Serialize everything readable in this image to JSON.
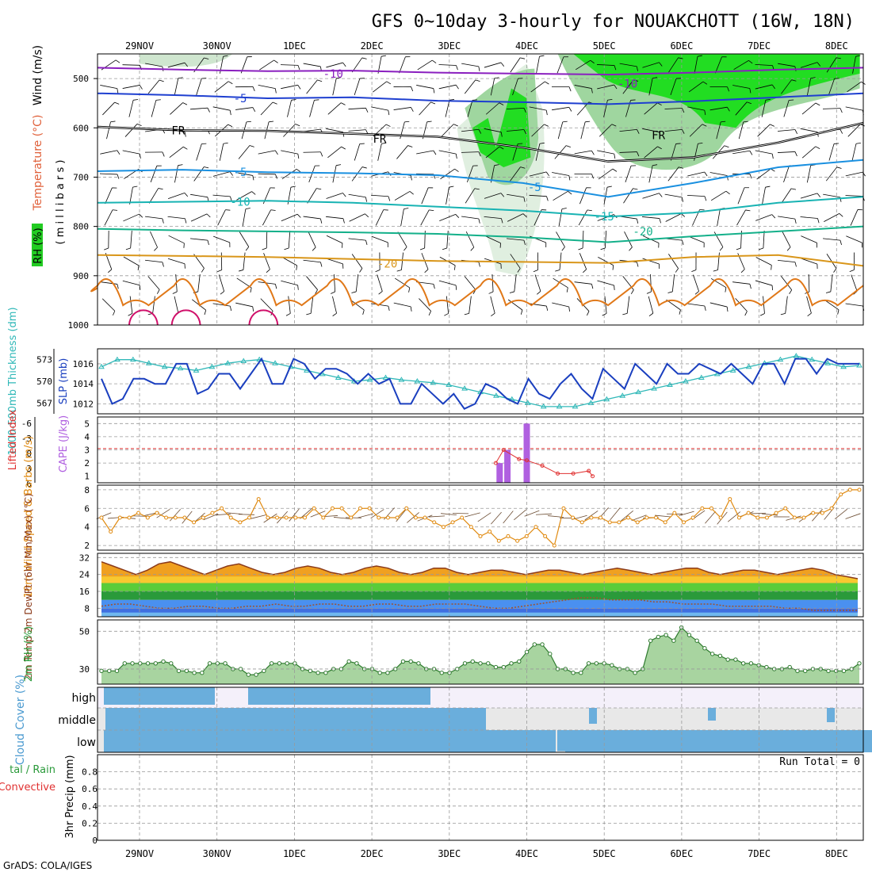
{
  "title": "GFS 0~10day 3-hourly for NOUAKCHOTT (16W, 18N)",
  "footer": "GrADS: COLA/IGES",
  "chart_data": [
    {
      "type": "line",
      "panel": "upper-air",
      "date_labels": [
        "29NOV",
        "30NOV",
        "1DEC",
        "2DEC",
        "3DEC",
        "4DEC",
        "5DEC",
        "6DEC",
        "7DEC",
        "8DEC"
      ],
      "axis_labels": {
        "wind": "Wind (m/s)",
        "temperature": "Temperature (°C)",
        "rh": "RH (%)",
        "pressure": "( m i l l i b a r s )"
      },
      "yticks": [
        "500",
        "600",
        "700",
        "800",
        "900",
        "1000"
      ],
      "ylim": [
        450,
        1000
      ],
      "isotherm_labels": [
        "-10",
        "-10",
        "-5",
        "FR",
        "FR",
        "FR",
        "-5",
        "-5",
        "-10",
        "-15",
        "-20",
        "-20"
      ],
      "isotherms": [
        {
          "label": "-10",
          "p": [
            478,
            482,
            485,
            484,
            488,
            490,
            492,
            488,
            482,
            478
          ]
        },
        {
          "label": "-5",
          "p": [
            530,
            534,
            540,
            538,
            545,
            548,
            552,
            546,
            538,
            530
          ]
        },
        {
          "label": "FR",
          "p": [
            598,
            605,
            606,
            612,
            618,
            640,
            668,
            660,
            630,
            590
          ]
        },
        {
          "label": "-5",
          "p": [
            688,
            685,
            690,
            692,
            696,
            712,
            740,
            712,
            680,
            665
          ]
        },
        {
          "label": "-10",
          "p": [
            752,
            750,
            748,
            752,
            760,
            768,
            780,
            772,
            752,
            740
          ]
        },
        {
          "label": "-15",
          "p": [
            805,
            808,
            810,
            812,
            815,
            822,
            832,
            820,
            810,
            800
          ]
        },
        {
          "label": "-20",
          "p": [
            858,
            860,
            862,
            866,
            870,
            872,
            874,
            862,
            858,
            880
          ]
        }
      ]
    },
    {
      "type": "line",
      "panel": "slp-thickness",
      "axis_labels": {
        "thickness": "1000-500mb Thickness (dm)",
        "slp": "SLP (mb)"
      },
      "left_ticks": [
        "573",
        "570",
        "567"
      ],
      "right_ticks": [
        "1016",
        "1014",
        "1012"
      ],
      "series": [
        {
          "name": "SLP",
          "color": "#1a3fbf",
          "values": [
            1014.5,
            1012,
            1012.5,
            1014.5,
            1014.5,
            1014,
            1014,
            1016,
            1016,
            1013,
            1013.5,
            1015,
            1015,
            1013.5,
            1015,
            1016.5,
            1014,
            1014,
            1016.5,
            1016,
            1014.5,
            1015.5,
            1015.5,
            1015,
            1014,
            1015,
            1014,
            1014.5,
            1012,
            1012,
            1014,
            1013,
            1012,
            1013,
            1011.5,
            1012,
            1014,
            1013.5,
            1012.5,
            1012,
            1014.5,
            1013,
            1012.5,
            1014,
            1015,
            1013.5,
            1012.5,
            1015.5,
            1014.5,
            1013.5,
            1016,
            1015,
            1014,
            1016,
            1015,
            1015,
            1016,
            1015.5,
            1015,
            1016,
            1015,
            1014,
            1016,
            1016,
            1014,
            1016.5,
            1016.5,
            1015,
            1016.5,
            1016,
            1016,
            1016
          ],
          "ylim": [
            1011,
            1017.5
          ]
        },
        {
          "name": "Thickness",
          "color": "#30b8b8",
          "values": [
            572,
            573,
            573,
            572.5,
            572,
            571.8,
            571.5,
            572,
            572.5,
            572.8,
            573,
            572.5,
            572,
            571.5,
            571,
            570.5,
            570,
            570.2,
            570.5,
            570.2,
            570,
            569.8,
            569.5,
            569,
            568.5,
            568,
            567.5,
            567,
            566.5,
            566.5,
            566.5,
            567,
            567.5,
            568,
            568.5,
            569,
            569.5,
            570,
            570.5,
            571,
            571.5,
            572,
            572.5,
            573,
            573.5,
            573,
            572.5,
            572,
            572.2
          ],
          "ylim": [
            565.5,
            574.5
          ]
        }
      ]
    },
    {
      "type": "bar",
      "panel": "cape-li",
      "axis_labels": {
        "li": "Lifted Index",
        "cape": "CAPE (J/kg)"
      },
      "left_ticks": [
        "-6",
        "-3",
        "0",
        "3",
        "6"
      ],
      "right_ticks": [
        "5",
        "4",
        "3",
        "2",
        "1"
      ],
      "cape_bars": [
        {
          "day": 4.65,
          "value": 2
        },
        {
          "day": 4.75,
          "value": 3
        },
        {
          "day": 5.0,
          "value": 5
        }
      ],
      "li_line": [
        [
          4.6,
          2
        ],
        [
          4.7,
          3
        ],
        [
          4.9,
          2.3
        ],
        [
          5.0,
          2.2
        ],
        [
          5.2,
          1.8
        ],
        [
          5.4,
          1.2
        ],
        [
          5.6,
          1.2
        ],
        [
          5.8,
          1.4
        ],
        [
          5.85,
          1
        ]
      ]
    },
    {
      "type": "line",
      "panel": "wind10m",
      "axis_labels": {
        "wind": "10m Wind Speed & Barbs (m/s)"
      },
      "yticks": [
        "8",
        "6",
        "4",
        "2"
      ],
      "ylim": [
        1.5,
        8.5
      ],
      "series": [
        {
          "name": "10m Wind",
          "color": "#e08a10",
          "values": [
            5,
            3.5,
            5,
            5,
            5.5,
            5,
            5.5,
            5,
            5,
            5,
            4.5,
            5,
            5.5,
            6,
            5,
            4.5,
            5,
            7,
            5,
            5,
            5,
            5,
            5,
            6,
            5,
            6,
            6,
            5,
            6,
            6,
            5,
            5,
            5,
            6,
            5,
            5,
            4.5,
            4,
            4.5,
            5,
            4,
            3,
            3.5,
            2.5,
            3,
            2.5,
            3,
            4,
            3,
            2,
            6,
            5,
            4.5,
            5,
            5,
            4.5,
            4.5,
            5,
            4.5,
            5,
            5,
            4.5,
            5.5,
            4.5,
            5,
            6,
            6,
            5,
            7,
            5,
            5.5,
            5,
            5,
            5.5,
            6,
            5,
            5,
            5.5,
            5.5,
            6,
            7.5,
            8,
            8
          ]
        }
      ]
    },
    {
      "type": "area",
      "panel": "temp2m",
      "axis_labels": {
        "temp": "2m Temp 2m DewPt (6hr Min/Max) (°C)"
      },
      "yticks": [
        "32",
        "24",
        "16",
        "8"
      ],
      "ylim": [
        4,
        34
      ],
      "series": [
        {
          "name": "2m Temp",
          "color": "#8b3a1a",
          "values": [
            30,
            28,
            26,
            24,
            26,
            29,
            30,
            28,
            26,
            24,
            26,
            28,
            29,
            27,
            25,
            24,
            25,
            27,
            28,
            27,
            25,
            24,
            25,
            27,
            28,
            27,
            25,
            24,
            25,
            27,
            27,
            25,
            24,
            25,
            26,
            26,
            25,
            24,
            25,
            26,
            26,
            25,
            24,
            25,
            26,
            27,
            26,
            25,
            24,
            25,
            26,
            27,
            27,
            25,
            24,
            25,
            26,
            26,
            25,
            24,
            25,
            26,
            27,
            26,
            24,
            23,
            22
          ]
        },
        {
          "name": "2m DewPt",
          "color": "#a0522d",
          "values": [
            9,
            10,
            10,
            9,
            8,
            8,
            9,
            9,
            8,
            8,
            9,
            9,
            10,
            9,
            9,
            10,
            10,
            9,
            9,
            10,
            10,
            9,
            9,
            10,
            10,
            10,
            9,
            8,
            8,
            9,
            10,
            11,
            12,
            13,
            13,
            12,
            12,
            12,
            11,
            11,
            10,
            10,
            10,
            9,
            9,
            9,
            9,
            8,
            8,
            7,
            7,
            7,
            7
          ]
        }
      ]
    },
    {
      "type": "area",
      "panel": "rh2m",
      "axis_labels": {
        "rh": "2m RH (%)"
      },
      "yticks": [
        "50",
        "30"
      ],
      "ylim": [
        22,
        56
      ],
      "series": [
        {
          "name": "2m RH",
          "color": "#2e7a2e",
          "values": [
            29,
            29,
            29,
            33,
            33,
            33,
            33,
            33,
            34,
            33,
            29,
            29,
            28,
            28,
            33,
            33,
            33,
            30,
            30,
            27,
            27,
            29,
            33,
            33,
            33,
            33,
            30,
            29,
            28,
            28,
            30,
            30,
            34,
            33,
            30,
            30,
            28,
            28,
            30,
            34,
            34,
            33,
            30,
            30,
            28,
            28,
            30,
            33,
            34,
            33,
            33,
            31,
            31,
            33,
            34,
            39,
            43,
            43,
            38,
            30,
            30,
            28,
            28,
            33,
            33,
            33,
            32,
            30,
            30,
            28,
            30,
            45,
            47,
            48,
            45,
            52,
            48,
            45,
            41,
            38,
            37,
            35,
            35,
            33,
            33,
            32,
            31,
            30,
            30,
            31,
            29,
            29,
            30,
            30,
            29,
            29,
            29,
            30,
            33
          ]
        }
      ]
    },
    {
      "type": "bar",
      "panel": "cloud",
      "axis_labels": {
        "cloud": "Cloud Cover (%)"
      },
      "yticks": [
        "high",
        "middle",
        "low"
      ]
    },
    {
      "type": "bar",
      "panel": "precip",
      "axis_labels": {
        "precip": "3hr Precip (mm)",
        "legend1": "tal / Rain",
        "legend2": "Convective"
      },
      "yticks": [
        "0.8",
        "0.6",
        "0.4",
        "0.2",
        "0"
      ],
      "ylim": [
        0,
        1
      ],
      "run_total": "Run Total = 0",
      "values": []
    }
  ]
}
